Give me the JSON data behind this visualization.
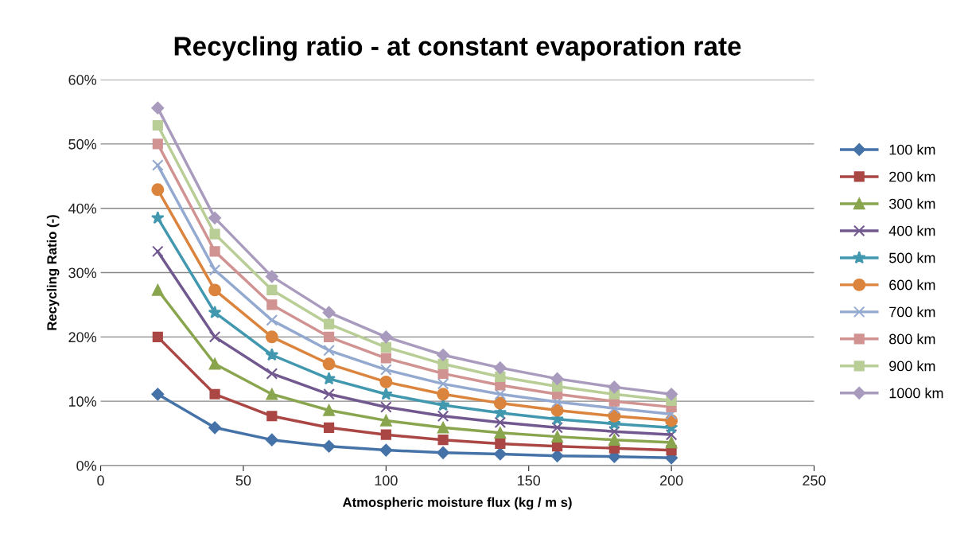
{
  "chart_data": {
    "type": "line",
    "title": "Recycling ratio - at constant evaporation rate",
    "xlabel": "Atmospheric moisture flux (kg / m s)",
    "ylabel": "Recycling Ratio (-)",
    "x": [
      20,
      40,
      60,
      80,
      100,
      120,
      140,
      160,
      180,
      200
    ],
    "xlim": [
      0,
      250
    ],
    "xticks": [
      0,
      50,
      100,
      150,
      200,
      250
    ],
    "ylim": [
      0,
      60
    ],
    "yticks": [
      {
        "value": 0,
        "label": "0%"
      },
      {
        "value": 10,
        "label": "10%"
      },
      {
        "value": 20,
        "label": "20%"
      },
      {
        "value": 30,
        "label": "30%"
      },
      {
        "value": 40,
        "label": "40%"
      },
      {
        "value": 50,
        "label": "50%"
      },
      {
        "value": 60,
        "label": "60%"
      }
    ],
    "grid": "y",
    "legend": "right",
    "line_style": "solid",
    "series": [
      {
        "name": "100 km",
        "color": "#4572a7",
        "marker": "diamond",
        "values": [
          11.1,
          5.9,
          4.0,
          3.0,
          2.4,
          2.0,
          1.8,
          1.5,
          1.4,
          1.2
        ]
      },
      {
        "name": "200 km",
        "color": "#aa4643",
        "marker": "square",
        "values": [
          20.0,
          11.1,
          7.7,
          5.9,
          4.8,
          4.0,
          3.4,
          3.0,
          2.7,
          2.4
        ]
      },
      {
        "name": "300 km",
        "color": "#89a54e",
        "marker": "triangle",
        "values": [
          27.3,
          15.8,
          11.1,
          8.6,
          7.0,
          5.9,
          5.1,
          4.5,
          4.0,
          3.6
        ]
      },
      {
        "name": "400 km",
        "color": "#71588f",
        "marker": "cross",
        "values": [
          33.3,
          20.0,
          14.3,
          11.1,
          9.1,
          7.7,
          6.7,
          5.9,
          5.3,
          4.8
        ]
      },
      {
        "name": "500 km",
        "color": "#4198af",
        "marker": "star",
        "values": [
          38.5,
          23.8,
          17.2,
          13.5,
          11.1,
          9.4,
          8.2,
          7.2,
          6.5,
          5.9
        ]
      },
      {
        "name": "600 km",
        "color": "#db843d",
        "marker": "circle",
        "values": [
          42.9,
          27.3,
          20.0,
          15.8,
          13.0,
          11.1,
          9.7,
          8.6,
          7.7,
          7.0
        ]
      },
      {
        "name": "700 km",
        "color": "#93a9cf",
        "marker": "cross",
        "values": [
          46.7,
          30.4,
          22.6,
          17.9,
          14.9,
          12.7,
          11.1,
          9.9,
          8.9,
          8.0
        ]
      },
      {
        "name": "800 km",
        "color": "#d19392",
        "marker": "square",
        "values": [
          50.0,
          33.3,
          25.0,
          20.0,
          16.7,
          14.3,
          12.5,
          11.1,
          10.0,
          9.1
        ]
      },
      {
        "name": "900 km",
        "color": "#b9cd96",
        "marker": "square",
        "values": [
          52.9,
          36.0,
          27.3,
          22.0,
          18.4,
          15.8,
          13.8,
          12.3,
          11.1,
          10.1
        ]
      },
      {
        "name": "1000 km",
        "color": "#a99bbd",
        "marker": "diamond",
        "values": [
          55.6,
          38.5,
          29.4,
          23.8,
          20.0,
          17.2,
          15.2,
          13.5,
          12.2,
          11.1
        ]
      }
    ]
  }
}
